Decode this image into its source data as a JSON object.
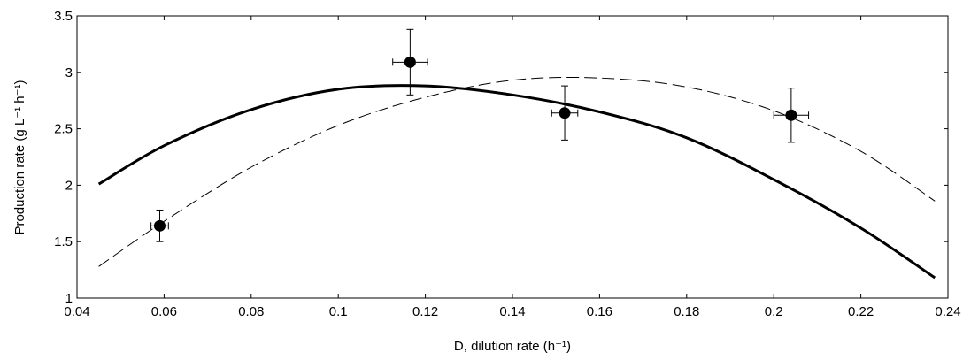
{
  "chart_data": {
    "type": "scatter",
    "xlabel": "D, dilution rate (h⁻¹)",
    "ylabel": "Production rate (g L⁻¹ h⁻¹)",
    "xlim": [
      0.04,
      0.24
    ],
    "ylim": [
      1,
      3.5
    ],
    "x_ticks": [
      "0.04",
      "0.06",
      "0.08",
      "0.1",
      "0.12",
      "0.14",
      "0.16",
      "0.18",
      "0.2",
      "0.22",
      "0.24"
    ],
    "y_ticks": [
      "1",
      "1.5",
      "2",
      "2.5",
      "3",
      "3.5"
    ],
    "grid": false,
    "points": [
      {
        "x": 0.059,
        "y": 1.64,
        "y_err": 0.14,
        "x_err": 0.002
      },
      {
        "x": 0.1165,
        "y": 3.09,
        "y_err": 0.29,
        "x_err": 0.004
      },
      {
        "x": 0.152,
        "y": 2.64,
        "y_err": 0.24,
        "x_err": 0.003
      },
      {
        "x": 0.204,
        "y": 2.62,
        "y_err": 0.24,
        "x_err": 0.004
      }
    ],
    "series": [
      {
        "style": "solid-thick",
        "color": "#000000",
        "x": [
          0.045,
          0.06,
          0.08,
          0.1,
          0.12,
          0.14,
          0.16,
          0.18,
          0.2,
          0.22,
          0.237
        ],
        "y": [
          2.01,
          2.35,
          2.67,
          2.85,
          2.88,
          2.8,
          2.65,
          2.42,
          2.05,
          1.62,
          1.18
        ]
      },
      {
        "style": "dashed-thin",
        "color": "#000000",
        "x": [
          0.045,
          0.06,
          0.08,
          0.1,
          0.12,
          0.14,
          0.16,
          0.18,
          0.2,
          0.22,
          0.237
        ],
        "y": [
          1.28,
          1.68,
          2.16,
          2.53,
          2.78,
          2.93,
          2.95,
          2.87,
          2.66,
          2.3,
          1.86
        ]
      }
    ]
  }
}
